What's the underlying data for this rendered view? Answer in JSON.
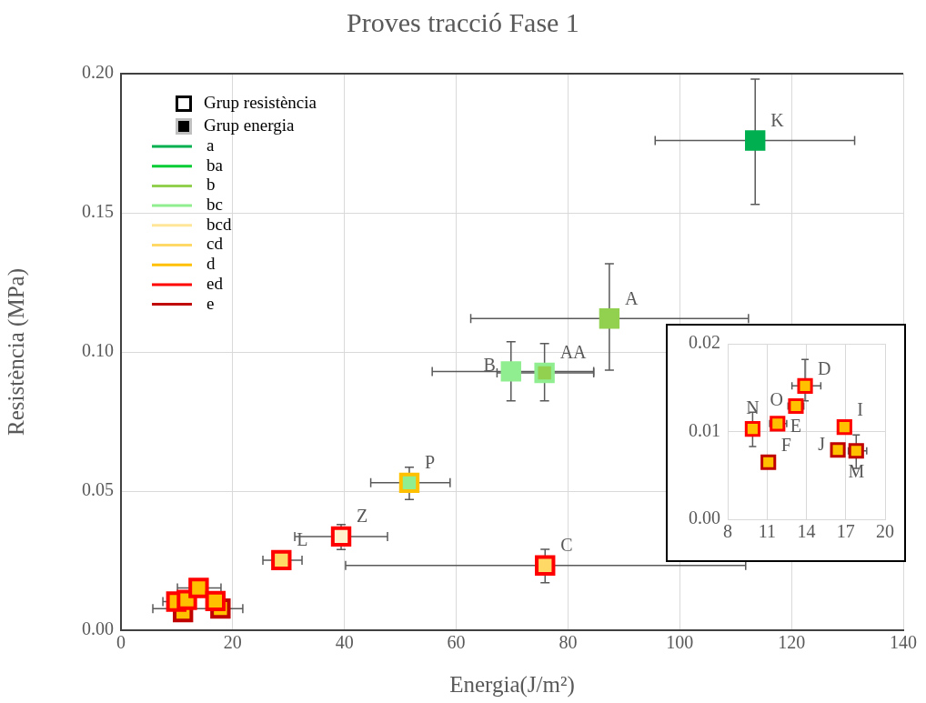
{
  "chart_data": [
    {
      "type": "scatter",
      "title": "Proves tracció Fase 1",
      "xlabel": "Energia(J/m²)",
      "ylabel": "Resistència (MPa)",
      "xlim": [
        0,
        140
      ],
      "xticks": [
        0,
        20,
        40,
        60,
        80,
        100,
        120,
        140
      ],
      "ylim": [
        0,
        0.2
      ],
      "yticks": [
        {
          "value": 0,
          "label": "0.00"
        },
        {
          "value": 0.05,
          "label": "0.05"
        },
        {
          "value": 0.1,
          "label": "0.10"
        },
        {
          "value": 0.15,
          "label": "0.15"
        },
        {
          "value": 0.2,
          "label": "0.20"
        }
      ],
      "grid": true,
      "legend": "top left",
      "marker": "square",
      "series": [
        {
          "name": "a",
          "color": "#00b050",
          "x": [
            113.5
          ],
          "values": [
            0.176
          ],
          "colors": [
            "#00b050"
          ],
          "xerrors": [
            [
              95.6,
              131.3
            ]
          ],
          "errors": [
            [
              0.153,
              0.198
            ]
          ]
        },
        {
          "name": "ba",
          "color": "#00cc33"
        },
        {
          "name": "b",
          "color": "#92d050",
          "x": [
            87.4
          ],
          "values": [
            0.112
          ],
          "colors": [
            "#92d050"
          ],
          "xerrors": [
            [
              62.6,
              112.3
            ]
          ],
          "errors": [
            [
              0.0935,
              0.1317
            ]
          ]
        },
        {
          "name": "bc",
          "color": "#90ee90",
          "x": [
            69.8,
            75.8
          ],
          "values": [
            0.093,
            0.0925
          ],
          "colors": [
            "#90ee90",
            "#92d050"
          ],
          "xerrors": [
            [
              55.7,
              84.6
            ],
            [
              67.3,
              84.6
            ]
          ],
          "errors": [
            [
              0.0824,
              0.1037
            ],
            [
              0.0824,
              0.103
            ]
          ]
        },
        {
          "name": "bcd",
          "color": "#ffe699"
        },
        {
          "name": "cd",
          "color": "#ffd966"
        },
        {
          "name": "d",
          "color": "#ffc000",
          "x": [
            51.6
          ],
          "values": [
            0.053
          ],
          "colors": [
            "#90ee90"
          ],
          "xerrors": [
            [
              44.7,
              58.9
            ]
          ],
          "errors": [
            [
              0.047,
              0.0586
            ]
          ]
        },
        {
          "name": "ed",
          "color": "#ff0000",
          "x": [
            39.4,
            28.7,
            75.9,
            9.9,
            11.8,
            13.2,
            13.9,
            16.9
          ],
          "values": [
            0.0337,
            0.0252,
            0.0233,
            0.0103,
            0.0109,
            null,
            0.0152,
            0.0105
          ],
          "colors": [
            "#fff2cc",
            "#ffd966",
            "#ffd966",
            "#ffc000",
            "#ffc000",
            "#ffc000",
            "#ffc000",
            "#ffc000"
          ],
          "xerrors": [
            [
              31.1,
              47.7
            ],
            [
              25.4,
              32.4
            ],
            [
              40.2,
              111.8
            ],
            [
              7.5,
              9.9
            ],
            null,
            null,
            [
              10.1,
              17.9
            ],
            null
          ],
          "errors": [
            [
              0.029,
              0.038
            ],
            null,
            [
              0.0171,
              0.0291
            ],
            null,
            null,
            null,
            null,
            null
          ]
        },
        {
          "name": "e",
          "color": "#c00000",
          "x": [
            11.1,
            16.4,
            17.8
          ],
          "values": [
            0.0065,
            null,
            0.0078
          ],
          "colors": [
            "#ffc000",
            "#ffc000",
            "#ffc000"
          ],
          "xerrors": [
            null,
            null,
            [
              5.7,
              21.8
            ]
          ]
        }
      ],
      "annotations": [
        "Grup resistència",
        "Grup energia",
        {
          "text": "K",
          "x": 113.5,
          "y": 0.176
        },
        {
          "text": "A",
          "x": 87.4,
          "y": 0.112
        },
        {
          "text": "B",
          "x": 69.8,
          "y": 0.093
        },
        {
          "text": "AA",
          "x": 75.8,
          "y": 0.0925
        },
        {
          "text": "P",
          "x": 51.6,
          "y": 0.053
        },
        {
          "text": "Z",
          "x": 39.4,
          "y": 0.0337
        },
        {
          "text": "L",
          "x": 28.7,
          "y": 0.0252
        },
        {
          "text": "C",
          "x": 75.9,
          "y": 0.0233
        }
      ]
    },
    {
      "type": "scatter",
      "xlim": [
        8,
        20
      ],
      "xticks": [
        8,
        11,
        14,
        17,
        20
      ],
      "ylim": [
        0,
        0.02
      ],
      "yticks": [
        {
          "value": 0,
          "label": "0.00"
        },
        {
          "value": 0.01,
          "label": "0.01"
        },
        {
          "value": 0.02,
          "label": "0.02"
        }
      ],
      "grid": true,
      "marker": "square",
      "series": [
        {
          "color": "#ff0000",
          "x": [
            9.9,
            11.8,
            13.2,
            13.9,
            16.9
          ],
          "values": [
            0.0103,
            0.0109,
            0.0129,
            0.0152,
            0.0105
          ],
          "colors": [
            "#ffc000",
            "#ffc000",
            "#ffc000",
            "#ffc000",
            "#ffc000"
          ],
          "xerrors": [
            null,
            [
              11.2,
              12.5
            ],
            [
              12.6,
              13.8
            ],
            [
              12.9,
              15.1
            ],
            null
          ],
          "errors": [
            [
              0.0083,
              0.0122
            ],
            null,
            null,
            [
              0.0135,
              0.0182
            ],
            null
          ]
        },
        {
          "color": "#c00000",
          "x": [
            11.1,
            16.4,
            17.8
          ],
          "values": [
            0.0065,
            0.0079,
            0.0078
          ],
          "colors": [
            "#ffc000",
            "#ffc000",
            "#ffc000"
          ],
          "xerrors": [
            null,
            null,
            [
              17.2,
              18.6
            ]
          ],
          "errors": [
            null,
            null,
            [
              0.0058,
              0.0096
            ]
          ]
        }
      ],
      "annotations": [
        {
          "text": "D",
          "x": 13.9,
          "y": 0.0152
        },
        {
          "text": "E",
          "x": 11.8,
          "y": 0.0109
        },
        {
          "text": "O",
          "x": 13.2,
          "y": 0.0129
        },
        {
          "text": "N",
          "x": 9.9,
          "y": 0.0103
        },
        {
          "text": "F",
          "x": 11.1,
          "y": 0.0065
        },
        {
          "text": "J",
          "x": 16.4,
          "y": 0.0079
        },
        {
          "text": "M",
          "x": 17.8,
          "y": 0.0078
        },
        {
          "text": "I",
          "x": 16.9,
          "y": 0.0105
        }
      ]
    }
  ]
}
